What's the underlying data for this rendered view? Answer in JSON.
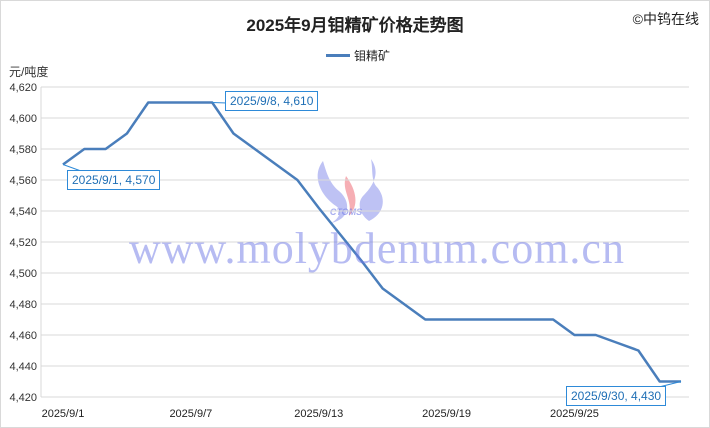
{
  "title": "2025年9月钼精矿价格走势图",
  "copyright": "©中钨在线",
  "watermark": "www.molybdenum.com.cn",
  "logo_text": "CTOMS",
  "chart_data": {
    "type": "line",
    "title": "2025年9月钼精矿价格走势图",
    "ylabel": "元/吨度",
    "xlabel": "",
    "ylim": [
      4420,
      4620
    ],
    "yticks": [
      4420,
      4440,
      4460,
      4480,
      4500,
      4520,
      4540,
      4560,
      4580,
      4600,
      4620
    ],
    "ytick_labels": [
      "4,420",
      "4,440",
      "4,460",
      "4,480",
      "4,500",
      "4,520",
      "4,540",
      "4,560",
      "4,580",
      "4,600",
      "4,620"
    ],
    "x": [
      "2025/9/1",
      "2025/9/2",
      "2025/9/3",
      "2025/9/4",
      "2025/9/5",
      "2025/9/6",
      "2025/9/7",
      "2025/9/8",
      "2025/9/9",
      "2025/9/10",
      "2025/9/11",
      "2025/9/12",
      "2025/9/13",
      "2025/9/14",
      "2025/9/15",
      "2025/9/16",
      "2025/9/17",
      "2025/9/18",
      "2025/9/19",
      "2025/9/20",
      "2025/9/21",
      "2025/9/22",
      "2025/9/23",
      "2025/9/24",
      "2025/9/25",
      "2025/9/26",
      "2025/9/27",
      "2025/9/28",
      "2025/9/29",
      "2025/9/30"
    ],
    "xtick_labels": [
      "2025/9/1",
      "2025/9/7",
      "2025/9/13",
      "2025/9/19",
      "2025/9/25"
    ],
    "xtick_index": [
      0,
      6,
      12,
      18,
      24
    ],
    "grid": true,
    "legend": "top",
    "color": "#4a7ebb",
    "series": [
      {
        "name": "钼精矿",
        "values": [
          4570,
          4580,
          4580,
          4590,
          4610,
          4610,
          4610,
          4610,
          4590,
          4580,
          4570,
          4560,
          4542,
          4525,
          4508,
          4490,
          4480,
          4470,
          4470,
          4470,
          4470,
          4470,
          4470,
          4470,
          4460,
          4460,
          4455,
          4450,
          4430,
          4430
        ]
      }
    ],
    "annotations": [
      {
        "index": 0,
        "text": "2025/9/1, 4,570"
      },
      {
        "index": 7,
        "text": "2025/9/8, 4,610"
      },
      {
        "index": 29,
        "text": "2025/9/30, 4,430"
      }
    ]
  }
}
